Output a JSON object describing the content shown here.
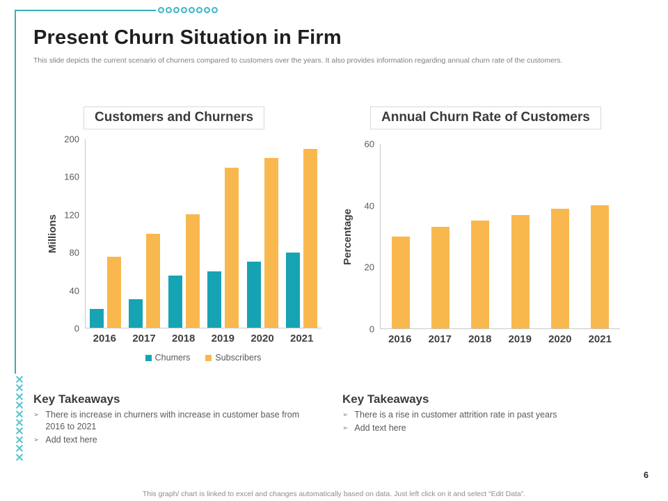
{
  "slide": {
    "title": "Present Churn Situation in Firm",
    "subtitle": "This slide depicts the current scenario of churners compared to customers over the years. It also provides information regarding annual churn rate of the customers.",
    "footer": "This graph/ chart is linked to excel and changes automatically based on data. Just left click on it and select “Edit Data”.",
    "page_number": "6"
  },
  "colors": {
    "teal_bar": "#16a3b4",
    "orange_bar": "#f9b84e",
    "accent_line": "#35aeba",
    "x_chain": "#5ec6d0"
  },
  "chart_data": [
    {
      "type": "bar",
      "title": "Customers and Churners",
      "categories": [
        "2016",
        "2017",
        "2018",
        "2019",
        "2020",
        "2021"
      ],
      "series": [
        {
          "name": "Chumers",
          "color": "#16a3b4",
          "values": [
            20,
            30,
            55,
            60,
            70,
            80
          ]
        },
        {
          "name": "Subscribers",
          "color": "#f9b84e",
          "values": [
            75,
            100,
            120,
            170,
            180,
            190
          ]
        }
      ],
      "xlabel": "",
      "ylabel": "Millions",
      "ylim": [
        0,
        200
      ],
      "yticks": [
        200,
        160,
        120,
        80,
        40,
        0
      ],
      "grid": false,
      "legend_position": "bottom"
    },
    {
      "type": "bar",
      "title": "Annual Churn Rate of Customers",
      "categories": [
        "2016",
        "2017",
        "2018",
        "2019",
        "2020",
        "2021"
      ],
      "series": [
        {
          "name": "Churn Rate",
          "color": "#f9b84e",
          "values": [
            30,
            33,
            35,
            37,
            39,
            40
          ]
        }
      ],
      "xlabel": "",
      "ylabel": "Percentage",
      "ylim": [
        0,
        60
      ],
      "yticks": [
        60,
        40,
        20,
        0
      ],
      "grid": false,
      "legend_position": "none"
    }
  ],
  "takeaways_left": {
    "title": "Key Takeaways",
    "bullet_icon": "➢",
    "items": [
      "There is increase in churners with increase in customer base from 2016 to 2021",
      "Add text here"
    ]
  },
  "takeaways_right": {
    "title": "Key Takeaways",
    "bullet_icon": "➢",
    "items": [
      "There is a rise in customer attrition rate in past years",
      "Add text here"
    ]
  },
  "decor": {
    "dot_count": 8,
    "x_count": 10,
    "x_glyph": "✕"
  }
}
